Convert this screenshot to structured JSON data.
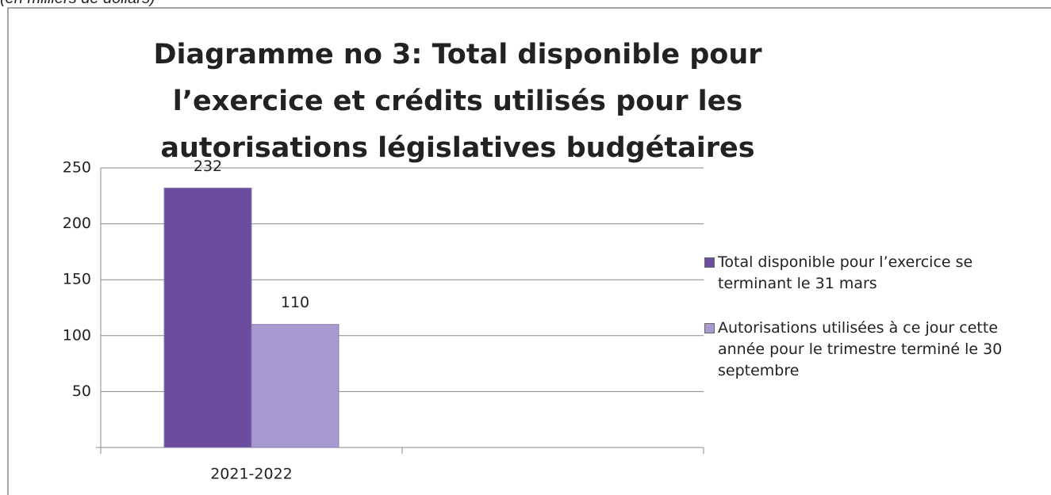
{
  "chart_data": {
    "type": "bar",
    "note": "(en milliers de dollars)",
    "title": "Diagramme no 3: Total disponible pour l’exercice et crédits utilisés pour les autorisations législatives budgétaires",
    "categories": [
      "2021-2022",
      null
    ],
    "series": [
      {
        "name": "Total disponible pour l’exercice se terminant le 31 mars",
        "color": "#6b4c9e",
        "values": [
          232,
          null
        ]
      },
      {
        "name": "Autorisations utilisées à ce jour cette année pour le trimestre terminé le 30 septembre",
        "color": "#a999d1",
        "values": [
          110,
          null
        ]
      }
    ],
    "ylim": [
      0,
      250
    ],
    "yticks": [
      50,
      100,
      150,
      200,
      250
    ],
    "grid": true,
    "legend": "right"
  }
}
